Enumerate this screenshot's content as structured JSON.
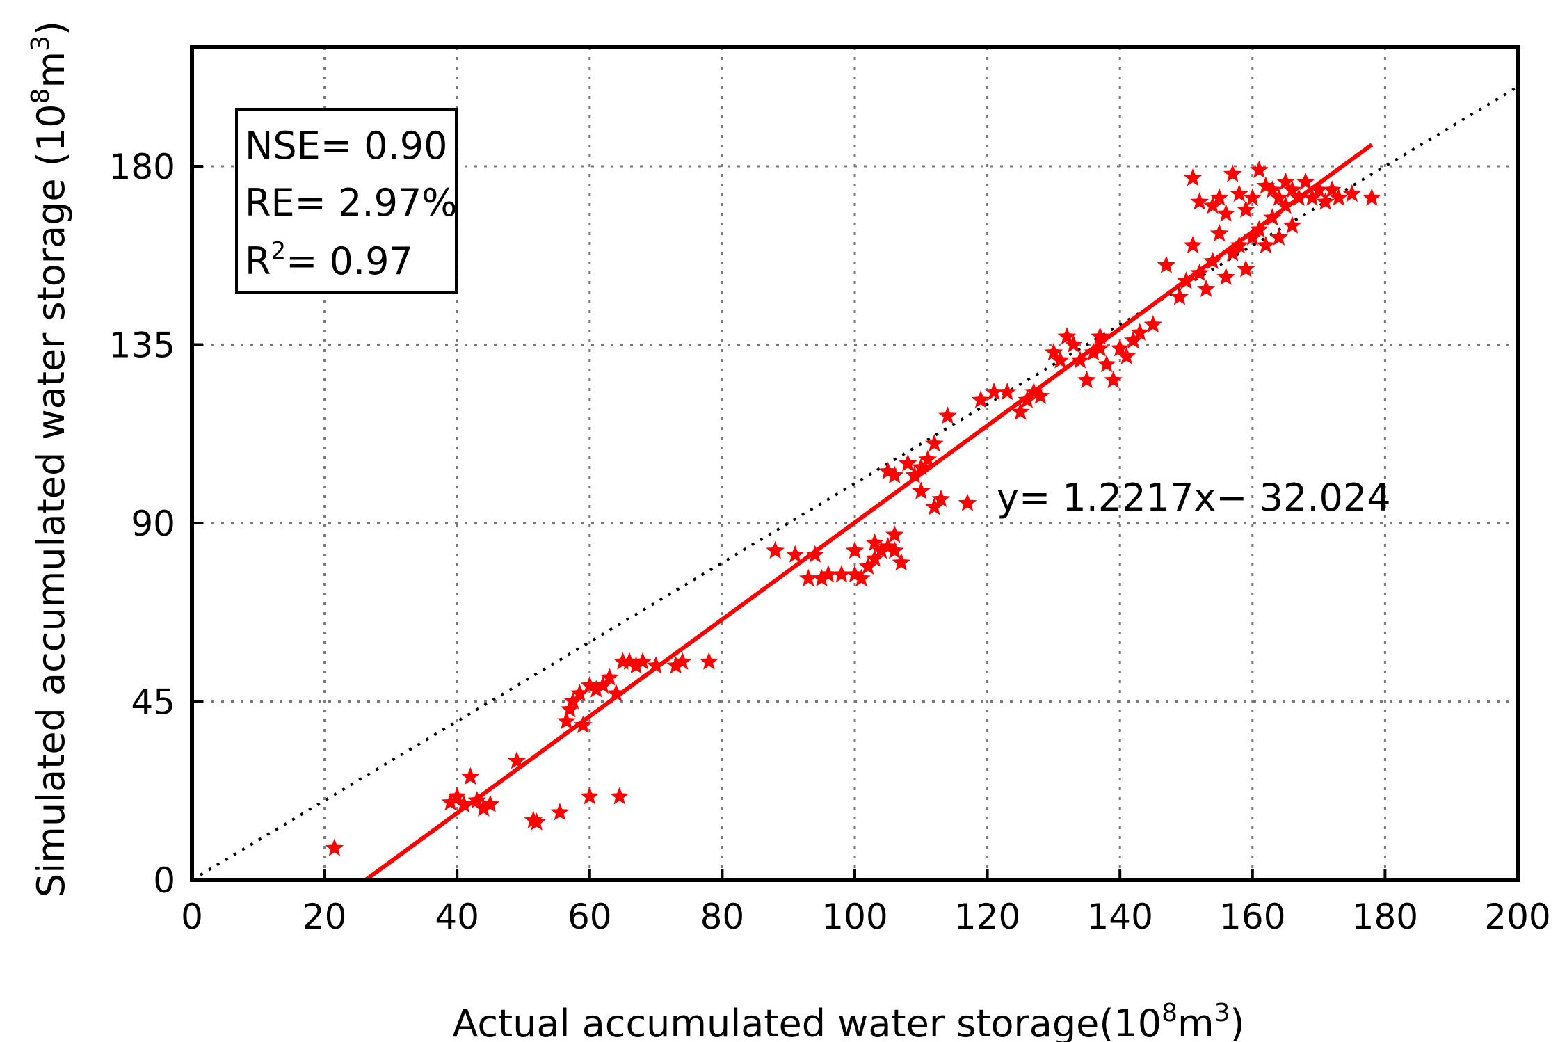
{
  "chart_data": {
    "type": "scatter",
    "title": "",
    "xlabel": "Actual accumulated water storage(10",
    "xlabel_sup": "8",
    "xlabel_mid": "m",
    "xlabel_sup2": "3",
    "xlabel_end": ")",
    "ylabel": "Simulated accumulated water storage (10",
    "ylabel_sup": "8",
    "ylabel_mid": "m",
    "ylabel_sup2": "3",
    "ylabel_end": ")",
    "xlim": [
      0,
      200
    ],
    "ylim": [
      0,
      210
    ],
    "x_ticks": [
      0,
      20,
      40,
      60,
      80,
      100,
      120,
      140,
      160,
      180,
      200
    ],
    "y_ticks": [
      0,
      45,
      90,
      135,
      180
    ],
    "x_tick_labels": [
      "0",
      "20",
      "40",
      "60",
      "80",
      "100",
      "120",
      "140",
      "160",
      "180",
      "200"
    ],
    "y_tick_labels": [
      "0",
      "45",
      "90",
      "135",
      "180"
    ],
    "grid": true,
    "marker": "star",
    "marker_color": "#ff0000",
    "stats": {
      "nse": "NSE= 0.90",
      "re": "RE= 2.97%",
      "r2_prefix": "R",
      "r2_sup": "2",
      "r2_rest": "= 0.97"
    },
    "fit": {
      "slope": 1.2217,
      "intercept": -32.024,
      "x_range": [
        26.2,
        178
      ],
      "color": "#ff0000",
      "equation": "y= 1.2217x− 32.024"
    },
    "reference_line": {
      "type": "1:1",
      "style": "dotted"
    },
    "points": [
      [
        21.5,
        8
      ],
      [
        39,
        19.5
      ],
      [
        40,
        21
      ],
      [
        41,
        19
      ],
      [
        42,
        26
      ],
      [
        43,
        20
      ],
      [
        44,
        18
      ],
      [
        45,
        19
      ],
      [
        49,
        30
      ],
      [
        51.5,
        15
      ],
      [
        52,
        14.5
      ],
      [
        55.5,
        17
      ],
      [
        60,
        21
      ],
      [
        64.5,
        21
      ],
      [
        56.5,
        40
      ],
      [
        57,
        43
      ],
      [
        57.5,
        45
      ],
      [
        58.5,
        47
      ],
      [
        59,
        39
      ],
      [
        60,
        49
      ],
      [
        61,
        48
      ],
      [
        62,
        49
      ],
      [
        63,
        51
      ],
      [
        64,
        47
      ],
      [
        65,
        55
      ],
      [
        66,
        55
      ],
      [
        67,
        54
      ],
      [
        68,
        55
      ],
      [
        70,
        54
      ],
      [
        73,
        54
      ],
      [
        74,
        55
      ],
      [
        78,
        55
      ],
      [
        88,
        83
      ],
      [
        91,
        82
      ],
      [
        93,
        76
      ],
      [
        94,
        82
      ],
      [
        95,
        76
      ],
      [
        96,
        77
      ],
      [
        98,
        77
      ],
      [
        100,
        77
      ],
      [
        101,
        76
      ],
      [
        102,
        79
      ],
      [
        103,
        81
      ],
      [
        104,
        83
      ],
      [
        105,
        84
      ],
      [
        106,
        83
      ],
      [
        107,
        80
      ],
      [
        106,
        87
      ],
      [
        103,
        85
      ],
      [
        100,
        83
      ],
      [
        105,
        103
      ],
      [
        106,
        102
      ],
      [
        108,
        105
      ],
      [
        109,
        102
      ],
      [
        110,
        104
      ],
      [
        111,
        106
      ],
      [
        110,
        98
      ],
      [
        112,
        94
      ],
      [
        113,
        96
      ],
      [
        112,
        110
      ],
      [
        114,
        117
      ],
      [
        117,
        95
      ],
      [
        119,
        121
      ],
      [
        121,
        123
      ],
      [
        123,
        123
      ],
      [
        125,
        118
      ],
      [
        126,
        121
      ],
      [
        127,
        123
      ],
      [
        128,
        122
      ],
      [
        130,
        133
      ],
      [
        131,
        131
      ],
      [
        132,
        137
      ],
      [
        133,
        135
      ],
      [
        134,
        131
      ],
      [
        135,
        126
      ],
      [
        136,
        133
      ],
      [
        137,
        137
      ],
      [
        137,
        134
      ],
      [
        138,
        130
      ],
      [
        139,
        126
      ],
      [
        140,
        134
      ],
      [
        141,
        132
      ],
      [
        142,
        136
      ],
      [
        143,
        138
      ],
      [
        145,
        140
      ],
      [
        147,
        155
      ],
      [
        149,
        147
      ],
      [
        150,
        151
      ],
      [
        151,
        160
      ],
      [
        152,
        153
      ],
      [
        153,
        149
      ],
      [
        154,
        156
      ],
      [
        155,
        163
      ],
      [
        156,
        152
      ],
      [
        157,
        158
      ],
      [
        158,
        160
      ],
      [
        159,
        154
      ],
      [
        160,
        162
      ],
      [
        161,
        164
      ],
      [
        162,
        160
      ],
      [
        163,
        167
      ],
      [
        164,
        162
      ],
      [
        165,
        170
      ],
      [
        166,
        165
      ],
      [
        151,
        177
      ],
      [
        152,
        171
      ],
      [
        154,
        170
      ],
      [
        155,
        172
      ],
      [
        156,
        168
      ],
      [
        157,
        178
      ],
      [
        158,
        173
      ],
      [
        159,
        169
      ],
      [
        160,
        172
      ],
      [
        161,
        179
      ],
      [
        162,
        175
      ],
      [
        163,
        174
      ],
      [
        164,
        172
      ],
      [
        165,
        176
      ],
      [
        166,
        174
      ],
      [
        167,
        172
      ],
      [
        168,
        176
      ],
      [
        169,
        172
      ],
      [
        170,
        174
      ],
      [
        171,
        171
      ],
      [
        172,
        174
      ],
      [
        173,
        172
      ],
      [
        175,
        173
      ],
      [
        178,
        172
      ]
    ]
  }
}
